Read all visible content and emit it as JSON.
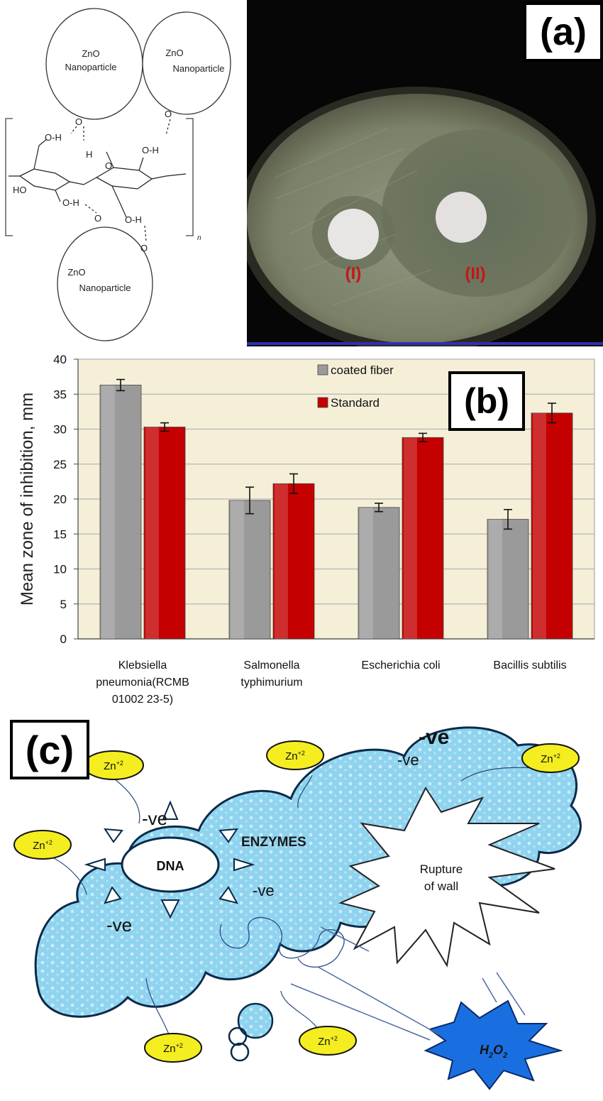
{
  "panel_a": {
    "label": "(a)",
    "nanoparticle_label": [
      "ZnO",
      "Nanoparticle"
    ],
    "subscript_n": "n",
    "ring_labels": [
      "HO",
      "O-H",
      "H",
      "O",
      "O-H",
      "O-H",
      "H",
      "O",
      "O"
    ],
    "disc_labels": [
      "(I)",
      "(II)"
    ]
  },
  "panel_b": {
    "label": "(b)"
  },
  "panel_c": {
    "label": "(c)",
    "dna": "DNA",
    "enzymes": "ENZYMES",
    "rupture": [
      "Rupture",
      "of wall"
    ],
    "h2o2": "H",
    "h2o2_sub1": "2",
    "h2o2_o": "O",
    "h2o2_sub2": "2",
    "zn_base": "Zn",
    "zn_sup": "+2",
    "neg": "-ve"
  },
  "chart_data": {
    "type": "bar",
    "ylabel": "Mean zone of inhibition, mm",
    "xlabel": "",
    "ylim": [
      0,
      40
    ],
    "yticks": [
      0,
      5,
      10,
      15,
      20,
      25,
      30,
      35,
      40
    ],
    "grid": true,
    "legend_position": "top-center",
    "categories": [
      [
        "Klebsiella",
        "pneumonia(RCMB",
        "01002 23-5)"
      ],
      [
        "Salmonella",
        "typhimurium"
      ],
      [
        "Escherichia coli"
      ],
      [
        "Bacillis subtilis"
      ]
    ],
    "series": [
      {
        "name": "coated fiber",
        "color": "#9a9a9a",
        "values": [
          36.3,
          19.8,
          18.8,
          17.1
        ],
        "errors": [
          0.8,
          1.9,
          0.6,
          1.4
        ]
      },
      {
        "name": "Standard",
        "color": "#c40000",
        "values": [
          30.3,
          22.2,
          28.8,
          32.3
        ],
        "errors": [
          0.6,
          1.4,
          0.6,
          1.4
        ]
      }
    ]
  }
}
